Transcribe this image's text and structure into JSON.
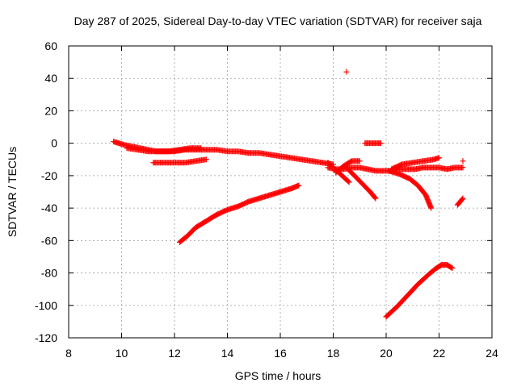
{
  "chart_data": {
    "type": "scatter",
    "title": "Day 287 of 2025, Sidereal Day-to-day VTEC variation (SDTVAR) for receiver saja",
    "xlabel": "GPS time / hours",
    "ylabel": "SDTVAR / TECUs",
    "xlim": [
      8,
      24
    ],
    "ylim": [
      -120,
      60
    ],
    "xticks": [
      8,
      10,
      12,
      14,
      16,
      18,
      20,
      22,
      24
    ],
    "yticks": [
      -120,
      -100,
      -80,
      -60,
      -40,
      -20,
      0,
      20,
      40,
      60
    ],
    "grid": true,
    "marker": "plus",
    "color": "#ff0000",
    "series": [
      {
        "name": "track-a",
        "x": [
          9.7,
          9.9,
          10.1,
          10.4,
          10.7,
          11.0,
          11.3,
          11.6,
          12.0,
          12.4,
          12.8,
          13.2,
          13.6,
          14.0,
          14.4,
          14.8,
          15.2,
          15.6,
          16.0,
          16.4,
          16.8,
          17.2,
          17.6,
          18.0
        ],
        "y": [
          1,
          0,
          -1,
          -2,
          -3,
          -4,
          -5,
          -5,
          -5,
          -4,
          -4,
          -4,
          -4,
          -5,
          -5,
          -6,
          -6,
          -7,
          -8,
          -9,
          -10,
          -11,
          -12,
          -13
        ]
      },
      {
        "name": "track-b",
        "x": [
          10.2,
          10.6,
          11.0,
          11.4,
          11.8,
          12.2,
          12.6,
          13.0
        ],
        "y": [
          -3,
          -4,
          -5,
          -5,
          -5,
          -4,
          -3,
          -3
        ]
      },
      {
        "name": "track-c",
        "x": [
          11.2,
          11.6,
          12.0,
          12.4,
          12.8,
          13.2
        ],
        "y": [
          -12,
          -12,
          -12,
          -12,
          -11,
          -10
        ]
      },
      {
        "name": "track-d",
        "x": [
          12.2,
          12.5,
          12.8,
          13.2,
          13.6,
          14.0,
          14.4,
          14.8,
          15.2,
          15.6,
          16.0,
          16.4,
          16.7
        ],
        "y": [
          -61,
          -57,
          -52,
          -48,
          -44,
          -41,
          -39,
          -36,
          -34,
          -32,
          -30,
          -28,
          -26
        ]
      },
      {
        "name": "track-e",
        "x": [
          17.8,
          18.1,
          18.4,
          18.7,
          19.0,
          19.3,
          19.6,
          19.9,
          20.2,
          20.5,
          20.8,
          21.1,
          21.4,
          21.7,
          22.0,
          22.3,
          22.6,
          22.9
        ],
        "y": [
          -15,
          -16,
          -16,
          -15,
          -15,
          -16,
          -17,
          -17,
          -17,
          -16,
          -16,
          -16,
          -15,
          -15,
          -15,
          -16,
          -15,
          -15
        ]
      },
      {
        "name": "track-f",
        "x": [
          17.8,
          18.0,
          18.2,
          18.4,
          18.6
        ],
        "y": [
          -12,
          -15,
          -18,
          -21,
          -24
        ]
      },
      {
        "name": "track-g",
        "x": [
          18.5,
          18.8,
          19.1,
          19.4,
          19.6
        ],
        "y": [
          -15,
          -20,
          -25,
          -30,
          -34
        ]
      },
      {
        "name": "track-h",
        "x": [
          18.1,
          18.4,
          18.7,
          19.0
        ],
        "y": [
          -18,
          -14,
          -11,
          -11
        ]
      },
      {
        "name": "track-i",
        "x": [
          19.2,
          19.5,
          19.8
        ],
        "y": [
          0,
          0,
          0
        ]
      },
      {
        "name": "track-j",
        "x": [
          20.2,
          20.6,
          21.0,
          21.4,
          21.8,
          22.0
        ],
        "y": [
          -16,
          -13,
          -12,
          -11,
          -10,
          -9
        ]
      },
      {
        "name": "track-k",
        "x": [
          20.1,
          20.5,
          20.9,
          21.2,
          21.5,
          21.7
        ],
        "y": [
          -17,
          -19,
          -22,
          -26,
          -32,
          -40
        ]
      },
      {
        "name": "track-l",
        "x": [
          20.0,
          20.4,
          20.8,
          21.2,
          21.6,
          21.9,
          22.1,
          22.3,
          22.5
        ],
        "y": [
          -107,
          -101,
          -94,
          -87,
          -81,
          -77,
          -75,
          -75,
          -77
        ]
      },
      {
        "name": "track-m",
        "x": [
          22.7,
          22.8,
          22.9
        ],
        "y": [
          -38,
          -36,
          -34
        ]
      },
      {
        "name": "outliers",
        "x": [
          18.5,
          22.9
        ],
        "y": [
          44,
          -11
        ]
      }
    ]
  }
}
